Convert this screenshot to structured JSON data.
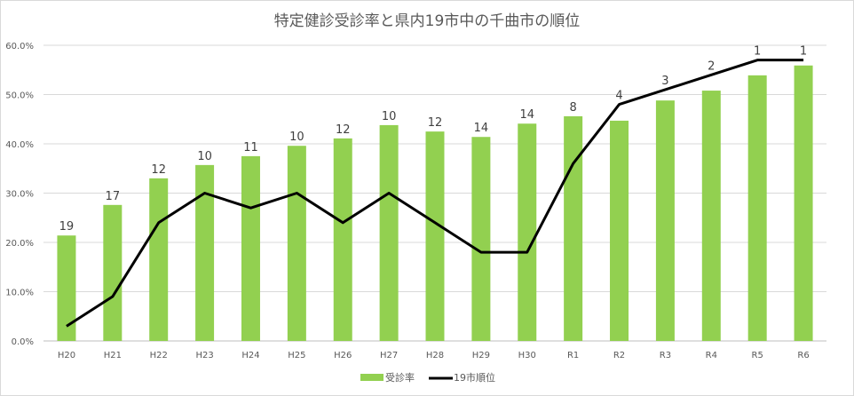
{
  "chart_data": {
    "type": "bar+line",
    "title": "特定健診受診率と県内19市中の千曲市の順位",
    "categories": [
      "H20",
      "H21",
      "H22",
      "H23",
      "H24",
      "H25",
      "H26",
      "H27",
      "H28",
      "H29",
      "H30",
      "R1",
      "R2",
      "R3",
      "R4",
      "R5",
      "R6"
    ],
    "series": [
      {
        "name": "受診率",
        "type": "bar",
        "axis": "primary",
        "color": "#92d050",
        "values": [
          21.4,
          27.6,
          33.0,
          35.7,
          37.5,
          39.6,
          41.1,
          43.8,
          42.5,
          41.4,
          44.1,
          45.6,
          44.7,
          48.8,
          50.8,
          53.9,
          55.9
        ]
      },
      {
        "name": "19市順位",
        "type": "line",
        "axis": "secondary",
        "color": "#000000",
        "values": [
          19,
          17,
          12,
          10,
          11,
          10,
          12,
          10,
          12,
          14,
          14,
          8,
          4,
          3,
          2,
          1,
          1
        ],
        "data_labels": [
          "19",
          "17",
          "12",
          "10",
          "11",
          "10",
          "12",
          "10",
          "12",
          "14",
          "14",
          "8",
          "4",
          "3",
          "2",
          "1",
          "1"
        ]
      }
    ],
    "y_axis": {
      "min": 0,
      "max": 60,
      "unit": "%",
      "ticks": [
        "0.0%",
        "10.0%",
        "20.0%",
        "30.0%",
        "40.0%",
        "50.0%",
        "60.0%"
      ]
    },
    "secondary_axis": {
      "min": 0,
      "max": 20,
      "reversed": true,
      "visible": false
    },
    "grid": true,
    "legend": "bottom"
  }
}
